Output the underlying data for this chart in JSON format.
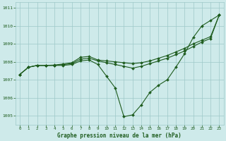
{
  "title": "Graphe pression niveau de la mer (hPa)",
  "background_color": "#ceeaea",
  "grid_color": "#9ec8c8",
  "line_color": "#1e5c1e",
  "xlim": [
    -0.5,
    23.5
  ],
  "ylim": [
    1004.5,
    1011.3
  ],
  "xticks": [
    0,
    1,
    2,
    3,
    4,
    5,
    6,
    7,
    8,
    9,
    10,
    11,
    12,
    13,
    14,
    15,
    16,
    17,
    18,
    19,
    20,
    21,
    22,
    23
  ],
  "yticks": [
    1005,
    1006,
    1007,
    1008,
    1009,
    1010,
    1011
  ],
  "series_v": [
    1007.3,
    1007.7,
    1007.8,
    1007.8,
    1007.8,
    1007.8,
    1007.85,
    1008.05,
    1008.1,
    1007.85,
    1007.2,
    1006.55,
    1004.95,
    1005.05,
    1005.6,
    1006.3,
    1006.7,
    1007.0,
    1007.7,
    1008.45,
    1009.35,
    1010.0,
    1010.3,
    1010.6
  ],
  "series_mid": [
    1007.3,
    1007.7,
    1007.8,
    1007.8,
    1007.8,
    1007.85,
    1007.9,
    1008.15,
    1008.2,
    1008.05,
    1007.95,
    1007.85,
    1007.75,
    1007.65,
    1007.75,
    1007.9,
    1008.05,
    1008.2,
    1008.4,
    1008.6,
    1008.85,
    1009.1,
    1009.3,
    1010.6
  ],
  "series_top": [
    1007.3,
    1007.7,
    1007.8,
    1007.8,
    1007.82,
    1007.88,
    1007.95,
    1008.25,
    1008.3,
    1008.1,
    1008.05,
    1008.0,
    1007.95,
    1007.9,
    1007.95,
    1008.05,
    1008.2,
    1008.35,
    1008.55,
    1008.75,
    1009.0,
    1009.2,
    1009.4,
    1010.6
  ]
}
